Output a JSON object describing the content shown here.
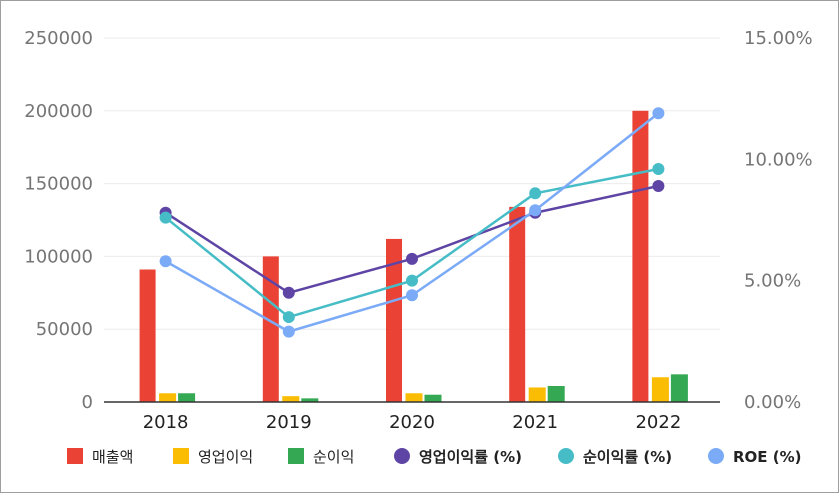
{
  "chart_data": {
    "type": "bar",
    "categories": [
      "2018",
      "2019",
      "2020",
      "2021",
      "2022"
    ],
    "bar_series": [
      {
        "name": "매출액",
        "color": "#ea4335",
        "values": [
          91000,
          100000,
          112000,
          134000,
          200000
        ]
      },
      {
        "name": "영업이익",
        "color": "#fbbc04",
        "values": [
          6000,
          4000,
          6000,
          10000,
          17000
        ]
      },
      {
        "name": "순이익",
        "color": "#34a853",
        "values": [
          6000,
          2500,
          5000,
          11000,
          19000
        ]
      }
    ],
    "line_series": [
      {
        "name": "영업이익률 (%)",
        "color": "#5e45a5",
        "values": [
          7.8,
          4.5,
          5.9,
          7.8,
          8.9
        ]
      },
      {
        "name": "순이익률 (%)",
        "color": "#46bdc6",
        "values": [
          7.6,
          3.5,
          5.0,
          8.6,
          9.6
        ]
      },
      {
        "name": "ROE (%)",
        "color": "#7baaf7",
        "values": [
          5.8,
          2.9,
          4.4,
          7.9,
          11.9
        ]
      }
    ],
    "y_left": {
      "min": 0,
      "max": 250000,
      "ticks": [
        "0",
        "50000",
        "100000",
        "150000",
        "200000",
        "250000"
      ]
    },
    "y_right": {
      "min": 0,
      "max": 15,
      "ticks": [
        "0.00%",
        "5.00%",
        "10.00%",
        "15.00%"
      ]
    },
    "grid": true,
    "legend_position": "bottom",
    "title": "",
    "xlabel": "",
    "ylabel": ""
  }
}
